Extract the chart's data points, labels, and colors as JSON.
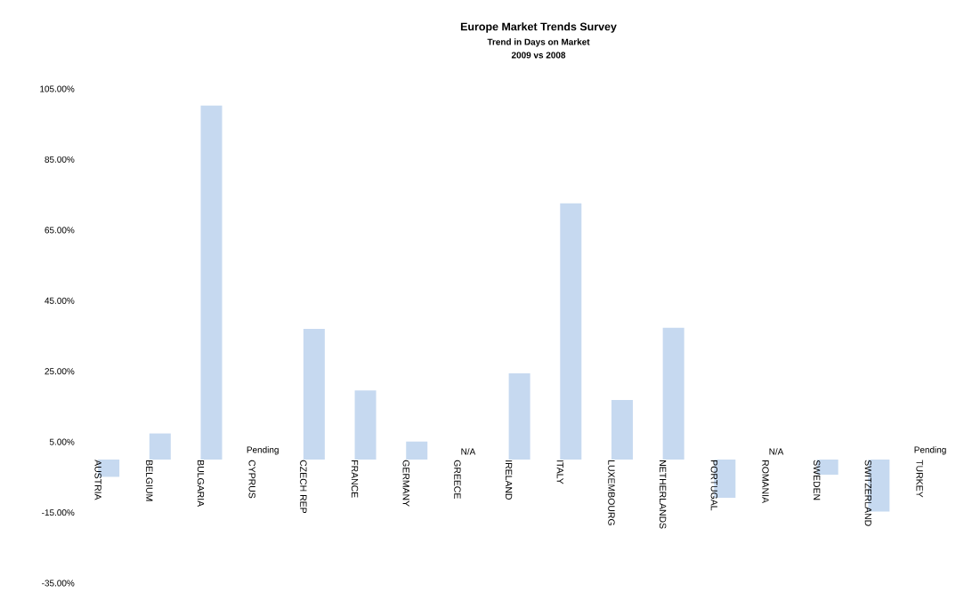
{
  "chart_data": {
    "type": "bar",
    "title": "Europe Market Trends Survey",
    "subtitle": "Trend in Days on Market",
    "categories": [
      "AUSTRIA",
      "BELGIUM",
      "BULGARIA",
      "CYPRUS",
      "CZECH REP",
      "FRANCE",
      "GERMANY",
      "GREECE",
      "IRELAND",
      "ITALY",
      "LUXEMBOURG",
      "NETHERLANDS",
      "PORTUGAL",
      "ROMANIA",
      "SWEDEN",
      "SWITZERLAND",
      "TURKEY"
    ],
    "values": [
      -4.9,
      7.4,
      100.3,
      null,
      37,
      19.6,
      5.1,
      null,
      24.4,
      72.6,
      16.9,
      37.3,
      -10.8,
      null,
      -4.3,
      -14.7,
      null
    ],
    "color": "#c6d9f0",
    "ylim": [
      -35,
      105
    ],
    "yticks": [
      {
        "value": -35,
        "label": "-35.00%"
      },
      {
        "value": -15,
        "label": "-15.00%"
      },
      {
        "value": 5,
        "label": "5.00%"
      },
      {
        "value": 25,
        "label": "25.00%"
      },
      {
        "value": 45,
        "label": "45.00%"
      },
      {
        "value": 65,
        "label": "65.00%"
      },
      {
        "value": 85,
        "label": "85.00%"
      },
      {
        "value": 105,
        "label": "105.00%"
      }
    ],
    "annotations": [
      "2009 vs 2008",
      "Pending",
      "N/A",
      "N/A",
      "Pending"
    ],
    "grid": false
  }
}
